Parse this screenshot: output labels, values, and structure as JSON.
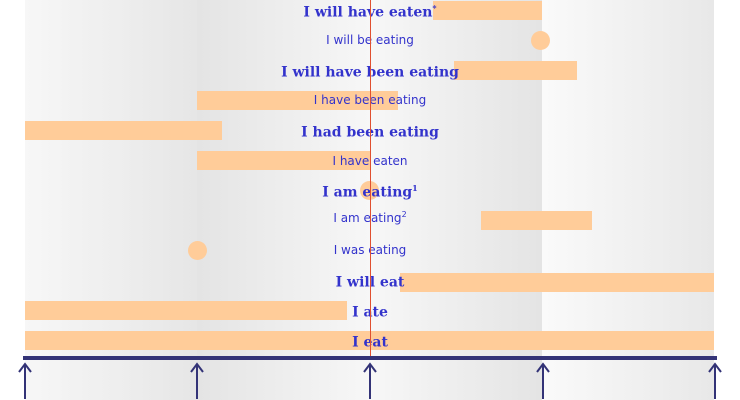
{
  "rows": [
    {
      "label": "I will have eaten",
      "sup": "*",
      "style": "serif"
    },
    {
      "label": "I will be eating",
      "sup": "",
      "style": "sans"
    },
    {
      "label": "I will have been eating",
      "sup": "",
      "style": "serif"
    },
    {
      "label": "I have been eating",
      "sup": "",
      "style": "sans"
    },
    {
      "label": "I had been eating",
      "sup": "",
      "style": "serif"
    },
    {
      "label": "I have eaten",
      "sup": "",
      "style": "sans"
    },
    {
      "label": "I am eating",
      "sup": "1",
      "style": "serif"
    },
    {
      "label": "I am eating",
      "sup": "2",
      "style": "sans"
    },
    {
      "label": "I was eating",
      "sup": "",
      "style": "sans"
    },
    {
      "label": "I will eat",
      "sup": "",
      "style": "serif"
    },
    {
      "label": "I ate",
      "sup": "",
      "style": "serif"
    },
    {
      "label": "I eat",
      "sup": "",
      "style": "serif"
    }
  ],
  "colors": {
    "bar": "#ffcc99",
    "label": "#3333cc",
    "now_line": "#e05030",
    "axis": "#333377"
  }
}
